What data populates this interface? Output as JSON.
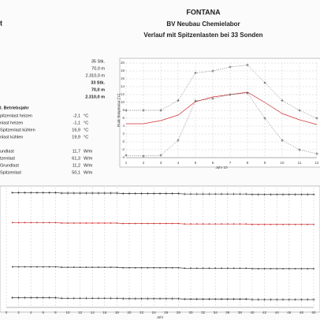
{
  "header": {
    "title": "FONTANA",
    "subtitle": "BV Neubau Chemielabor",
    "description": "Verlauf mit Spitzenlasten bei 33 Sonden",
    "left_fragment": "t"
  },
  "params": {
    "counts": [
      "35 Stk.",
      "70,0 m",
      "2.310,0 m",
      "33 Stk.",
      "70,0 m",
      "2.310,0 m"
    ],
    "heading": "l. Betriebsjahr",
    "temps": [
      {
        "label": "pitzenlast heizen",
        "value": "-2,1",
        "unit": "°C"
      },
      {
        "label": "niast heizen",
        "value": "-1,1",
        "unit": "°C"
      },
      {
        "label": "Spitzenlast kühlen",
        "value": "16,9",
        "unit": "°C"
      },
      {
        "label": "nlast kühlen",
        "value": "19,9",
        "unit": "°C"
      }
    ],
    "loads": [
      {
        "label": "undlast",
        "value": "11,7",
        "unit": "W/m"
      },
      {
        "label": "tzenlast",
        "value": "61,3",
        "unit": "W/m"
      },
      {
        "label": "Grundlast",
        "value": "11,2",
        "unit": "W/m"
      },
      {
        "label": "Spitzenlast",
        "value": "50,1",
        "unit": "W/m"
      }
    ]
  },
  "chart_data": [
    {
      "type": "line",
      "x_label": "Jahr 10",
      "y_label": "Fluid-Temperatur [°C]",
      "x": [
        1,
        2,
        3,
        4,
        5,
        6,
        7,
        8,
        9,
        10,
        11,
        12
      ],
      "xlim": [
        1,
        12
      ],
      "xticks": [
        1,
        2,
        3,
        4,
        5,
        6,
        7,
        8,
        9,
        10,
        11,
        12
      ],
      "ylim": [
        -4,
        20
      ],
      "yticks": [
        -4,
        -2,
        0,
        2,
        4,
        6,
        8,
        10,
        12,
        14,
        16,
        18,
        20
      ],
      "grid": true,
      "series": [
        {
          "color": "#333333",
          "marker": "cross",
          "line": "dotted",
          "values": [
            8,
            8,
            8,
            10.5,
            17.5,
            18,
            19,
            19.5,
            15,
            10.5,
            8,
            6
          ]
        },
        {
          "color": "#d03030",
          "marker": "none",
          "line": "solid",
          "values": [
            4.6,
            4.6,
            5.4,
            6.8,
            10.2,
            11.4,
            12,
            12.6,
            10,
            7.2,
            5.6,
            4.4
          ]
        },
        {
          "color": "#333333",
          "marker": "cross",
          "line": "dotted",
          "values": [
            -3.4,
            -3.6,
            -3.4,
            0.4,
            10.4,
            11,
            12,
            12.4,
            6,
            0.4,
            -2,
            -3
          ]
        }
      ]
    },
    {
      "type": "line",
      "x_label": "Jahr",
      "x": [
        1,
        2,
        3,
        4,
        5,
        6,
        7,
        8,
        9,
        10,
        11,
        12,
        13,
        14,
        15,
        16,
        17,
        18,
        19,
        20,
        21,
        22,
        23,
        24,
        25,
        26,
        27,
        28,
        29,
        30,
        31,
        32,
        33,
        34,
        35,
        36,
        37,
        38,
        39,
        40,
        41,
        42,
        43,
        44,
        45,
        46,
        47,
        48,
        49,
        50
      ],
      "xlim": [
        0,
        50
      ],
      "xticks": [
        0,
        2,
        4,
        6,
        8,
        10,
        12,
        14,
        16,
        18,
        20,
        22,
        24,
        26,
        28,
        30,
        32,
        34,
        36,
        38,
        40,
        42,
        44,
        46,
        48,
        50
      ],
      "ylim": [
        -5,
        21
      ],
      "grid": true,
      "series": [
        {
          "color": "#333333",
          "marker": "cross",
          "line": "solid",
          "values": [
            19.9,
            19.9,
            19.9,
            19.9,
            19.9,
            19.9,
            19.9,
            19.9,
            19.8,
            19.8,
            19.8,
            19.8,
            19.8,
            19.8,
            19.8,
            19.8,
            19.8,
            19.8,
            19.7,
            19.7,
            19.7,
            19.7,
            19.7,
            19.7,
            19.7,
            19.7,
            19.7,
            19.7,
            19.6,
            19.6,
            19.6,
            19.6,
            19.6,
            19.6,
            19.6,
            19.6,
            19.6,
            19.6,
            19.6,
            19.5,
            19.5,
            19.5,
            19.5,
            19.5,
            19.5,
            19.5,
            19.5,
            19.5,
            19.5,
            19.5
          ]
        },
        {
          "color": "#d03030",
          "marker": "dot",
          "line": "solid",
          "values": [
            13.4,
            13.4,
            13.4,
            13.4,
            13.4,
            13.4,
            13.4,
            13.4,
            13.3,
            13.3,
            13.3,
            13.3,
            13.3,
            13.3,
            13.3,
            13.3,
            13.3,
            13.3,
            13.2,
            13.2,
            13.2,
            13.2,
            13.2,
            13.2,
            13.2,
            13.2,
            13.2,
            13.2,
            13.1,
            13.1,
            13.1,
            13.1,
            13.1,
            13.1,
            13.1,
            13.1,
            13.1,
            13.1,
            13.1,
            13.0,
            13.0,
            13.0,
            13.0,
            13.0,
            13.0,
            13.0,
            13.0,
            13.0,
            13.0,
            13.0
          ]
        },
        {
          "color": "#333333",
          "marker": "dot",
          "line": "solid",
          "values": [
            3.8,
            3.8,
            3.8,
            3.8,
            3.8,
            3.8,
            3.8,
            3.8,
            3.7,
            3.7,
            3.7,
            3.7,
            3.7,
            3.7,
            3.7,
            3.7,
            3.7,
            3.7,
            3.6,
            3.6,
            3.6,
            3.6,
            3.6,
            3.6,
            3.6,
            3.6,
            3.6,
            3.6,
            3.5,
            3.5,
            3.5,
            3.5,
            3.5,
            3.5,
            3.5,
            3.5,
            3.5,
            3.5,
            3.5,
            3.4,
            3.4,
            3.4,
            3.4,
            3.4,
            3.4,
            3.4,
            3.4,
            3.4,
            3.4,
            3.4
          ]
        },
        {
          "color": "#333333",
          "marker": "cross",
          "line": "solid",
          "values": [
            -2.9,
            -2.9,
            -2.9,
            -2.9,
            -2.9,
            -2.9,
            -2.9,
            -2.9,
            -3.0,
            -3.0,
            -3.0,
            -3.0,
            -3.0,
            -3.0,
            -3.0,
            -3.0,
            -3.0,
            -3.0,
            -3.1,
            -3.1,
            -3.1,
            -3.1,
            -3.1,
            -3.1,
            -3.1,
            -3.1,
            -3.1,
            -3.1,
            -3.2,
            -3.2,
            -3.2,
            -3.2,
            -3.2,
            -3.2,
            -3.2,
            -3.2,
            -3.2,
            -3.2,
            -3.2,
            -3.3,
            -3.3,
            -3.3,
            -3.3,
            -3.3,
            -3.3,
            -3.3,
            -3.3,
            -3.3,
            -3.3,
            -3.3
          ]
        }
      ]
    }
  ]
}
